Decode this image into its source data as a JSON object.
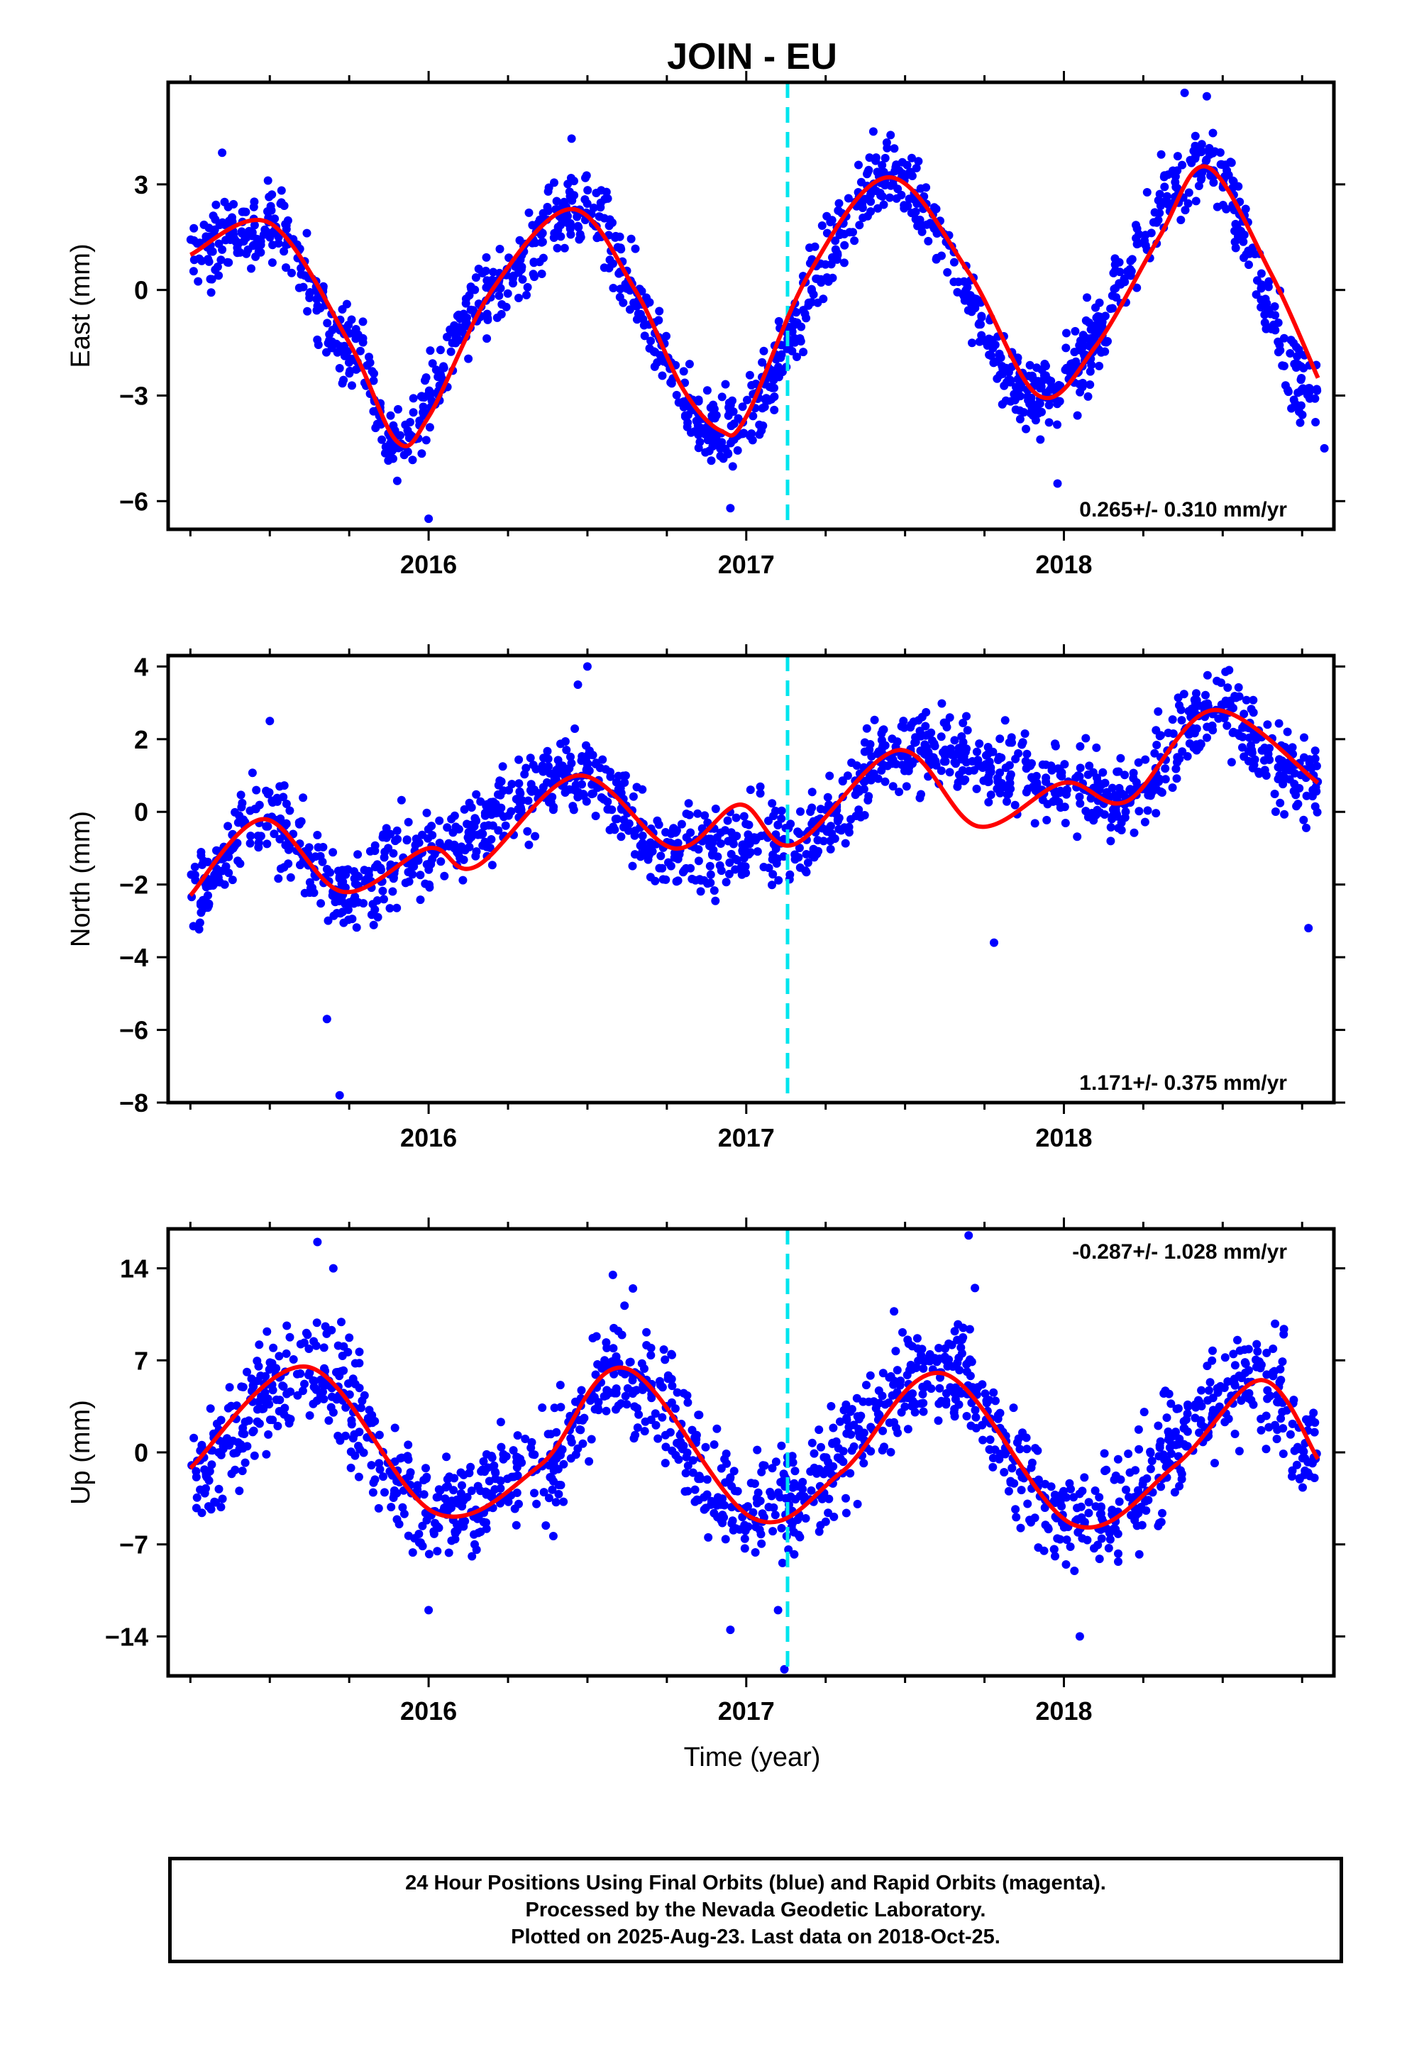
{
  "title": "JOIN - EU",
  "xlabel": "Time (year)",
  "caption_lines": [
    "24 Hour Positions Using Final Orbits (blue) and Rapid Orbits (magenta).",
    "Processed by the Nevada Geodetic Laboratory.",
    "Plotted on 2025-Aug-23. Last data on 2018-Oct-25."
  ],
  "colors": {
    "points": "#0000ff",
    "fit": "#ff0000",
    "event_line": "#00e5ee",
    "frame": "#000000"
  },
  "event_year": 2017.13,
  "chart_data": [
    {
      "type": "scatter",
      "ylabel": "East (mm)",
      "velocity": "0.265+/- 0.310 mm/yr",
      "velocity_position": "bottom-right",
      "xlim": [
        2015.18,
        2018.85
      ],
      "ylim": [
        -6.8,
        5.9
      ],
      "yticks": [
        -6,
        -3,
        0,
        3
      ],
      "yticklabels": [
        "−6",
        "−3",
        "0",
        "3"
      ],
      "xticks": [
        2016,
        2017,
        2018
      ],
      "xticklabels": [
        "2016",
        "2017",
        "2018"
      ],
      "fit": {
        "x": [
          2015.25,
          2015.5,
          2015.75,
          2015.9,
          2016.0,
          2016.2,
          2016.45,
          2016.65,
          2016.8,
          2016.92,
          2017.0,
          2017.2,
          2017.45,
          2017.7,
          2017.92,
          2018.1,
          2018.3,
          2018.45,
          2018.65,
          2018.8
        ],
        "y": [
          1.0,
          1.9,
          -1.5,
          -4.3,
          -3.6,
          0.0,
          2.3,
          0.0,
          -2.8,
          -4.0,
          -3.6,
          0.5,
          3.2,
          0.5,
          -3.0,
          -1.6,
          1.5,
          3.5,
          0.5,
          -2.5
        ]
      },
      "scatter": {
        "segments": [
          {
            "x0": 2015.25,
            "x1": 2015.5,
            "y0": 1.0,
            "y1": 1.9
          },
          {
            "x0": 2015.5,
            "x1": 2015.75,
            "y0": 1.9,
            "y1": -1.5
          },
          {
            "x0": 2015.75,
            "x1": 2015.9,
            "y0": -1.5,
            "y1": -4.3
          },
          {
            "x0": 2015.9,
            "x1": 2016.2,
            "y0": -4.3,
            "y1": 0.0
          },
          {
            "x0": 2016.2,
            "x1": 2016.45,
            "y0": 0.0,
            "y1": 2.3
          },
          {
            "x0": 2016.45,
            "x1": 2016.92,
            "y0": 2.3,
            "y1": -4.0
          },
          {
            "x0": 2016.92,
            "x1": 2017.45,
            "y0": -4.0,
            "y1": 3.2
          },
          {
            "x0": 2017.45,
            "x1": 2017.92,
            "y0": 3.2,
            "y1": -3.0
          },
          {
            "x0": 2017.92,
            "x1": 2018.45,
            "y0": -3.0,
            "y1": 3.5
          },
          {
            "x0": 2018.45,
            "x1": 2018.8,
            "y0": 3.5,
            "y1": -3.0
          }
        ],
        "spread": 0.75,
        "outliers": [
          [
            2015.35,
            3.9
          ],
          [
            2016.45,
            4.3
          ],
          [
            2016.95,
            -6.2
          ],
          [
            2017.4,
            4.5
          ],
          [
            2018.38,
            5.6
          ],
          [
            2018.45,
            5.5
          ],
          [
            2016.0,
            -6.5
          ],
          [
            2017.98,
            -5.5
          ],
          [
            2018.82,
            -4.5
          ]
        ]
      }
    },
    {
      "type": "scatter",
      "ylabel": "North (mm)",
      "velocity": "1.171+/- 0.375 mm/yr",
      "velocity_position": "bottom-right",
      "xlim": [
        2015.18,
        2018.85
      ],
      "ylim": [
        -8.0,
        4.3
      ],
      "yticks": [
        -8,
        -6,
        -4,
        -2,
        0,
        2,
        4
      ],
      "yticklabels": [
        "−8",
        "−6",
        "−4",
        "−2",
        "0",
        "2",
        "4"
      ],
      "xticks": [
        2016,
        2017,
        2018
      ],
      "xticklabels": [
        "2016",
        "2017",
        "2018"
      ],
      "fit": {
        "x": [
          2015.25,
          2015.48,
          2015.73,
          2016.0,
          2016.15,
          2016.47,
          2016.77,
          2016.98,
          2017.15,
          2017.48,
          2017.73,
          2018.0,
          2018.2,
          2018.47,
          2018.8
        ],
        "y": [
          -2.3,
          -0.2,
          -2.2,
          -1.0,
          -1.5,
          1.0,
          -1.0,
          0.2,
          -0.9,
          1.7,
          -0.4,
          0.8,
          0.3,
          2.8,
          0.8
        ]
      },
      "scatter": {
        "segments": [
          {
            "x0": 2015.25,
            "x1": 2015.48,
            "y0": -2.3,
            "y1": -0.2
          },
          {
            "x0": 2015.48,
            "x1": 2015.73,
            "y0": -0.2,
            "y1": -2.2
          },
          {
            "x0": 2015.73,
            "x1": 2016.0,
            "y0": -2.2,
            "y1": -1.0
          },
          {
            "x0": 2016.0,
            "x1": 2016.47,
            "y0": -1.0,
            "y1": 1.0
          },
          {
            "x0": 2016.47,
            "x1": 2016.77,
            "y0": 1.0,
            "y1": -1.0
          },
          {
            "x0": 2016.77,
            "x1": 2017.15,
            "y0": -1.0,
            "y1": -0.9
          },
          {
            "x0": 2017.15,
            "x1": 2017.48,
            "y0": -0.9,
            "y1": 1.7
          },
          {
            "x0": 2017.48,
            "x1": 2018.2,
            "y0": 1.7,
            "y1": 0.4
          },
          {
            "x0": 2018.2,
            "x1": 2018.47,
            "y0": 0.4,
            "y1": 2.8
          },
          {
            "x0": 2018.47,
            "x1": 2018.8,
            "y0": 2.8,
            "y1": 0.8
          }
        ],
        "spread": 0.8,
        "outliers": [
          [
            2015.5,
            2.5
          ],
          [
            2015.68,
            -5.7
          ],
          [
            2015.72,
            -7.8
          ],
          [
            2016.5,
            4.0
          ],
          [
            2018.52,
            3.9
          ],
          [
            2017.78,
            -3.6
          ],
          [
            2018.77,
            -3.2
          ],
          [
            2016.47,
            3.5
          ]
        ]
      }
    },
    {
      "type": "scatter",
      "ylabel": "Up (mm)",
      "velocity": "-0.287+/- 1.028 mm/yr",
      "velocity_position": "top-right",
      "xlim": [
        2015.18,
        2018.85
      ],
      "ylim": [
        -17.0,
        17.0
      ],
      "yticks": [
        -14,
        -7,
        0,
        7,
        14
      ],
      "yticklabels": [
        "−14",
        "−7",
        "0",
        "7",
        "14"
      ],
      "xticks": [
        2016,
        2017,
        2018
      ],
      "xticklabels": [
        "2016",
        "2017",
        "2018"
      ],
      "fit": {
        "x": [
          2015.25,
          2015.62,
          2016.02,
          2016.35,
          2016.62,
          2017.02,
          2017.3,
          2017.62,
          2018.03,
          2018.35,
          2018.62,
          2018.8
        ],
        "y": [
          -1.2,
          6.5,
          -4.6,
          -1.0,
          6.4,
          -5.0,
          -1.5,
          6.0,
          -5.5,
          -1.0,
          5.5,
          -0.5
        ]
      },
      "scatter": {
        "segments": [
          {
            "x0": 2015.25,
            "x1": 2015.62,
            "y0": -1.2,
            "y1": 6.5
          },
          {
            "x0": 2015.62,
            "x1": 2016.02,
            "y0": 6.5,
            "y1": -4.6
          },
          {
            "x0": 2016.02,
            "x1": 2016.35,
            "y0": -4.6,
            "y1": -1.0
          },
          {
            "x0": 2016.35,
            "x1": 2016.62,
            "y0": -1.0,
            "y1": 6.4
          },
          {
            "x0": 2016.62,
            "x1": 2017.02,
            "y0": 6.4,
            "y1": -5.0
          },
          {
            "x0": 2017.02,
            "x1": 2017.62,
            "y0": -5.0,
            "y1": 6.0
          },
          {
            "x0": 2017.62,
            "x1": 2018.03,
            "y0": 6.0,
            "y1": -5.5
          },
          {
            "x0": 2018.03,
            "x1": 2018.62,
            "y0": -5.5,
            "y1": 5.5
          },
          {
            "x0": 2018.62,
            "x1": 2018.8,
            "y0": 5.5,
            "y1": -0.5
          }
        ],
        "spread": 3.0,
        "outliers": [
          [
            2015.65,
            16.0
          ],
          [
            2015.7,
            14.0
          ],
          [
            2016.58,
            13.5
          ],
          [
            2017.7,
            16.5
          ],
          [
            2017.72,
            12.5
          ],
          [
            2017.12,
            -16.5
          ],
          [
            2017.1,
            -12.0
          ],
          [
            2016.95,
            -13.5
          ],
          [
            2018.05,
            -14.0
          ],
          [
            2016.0,
            -12.0
          ]
        ]
      }
    }
  ]
}
